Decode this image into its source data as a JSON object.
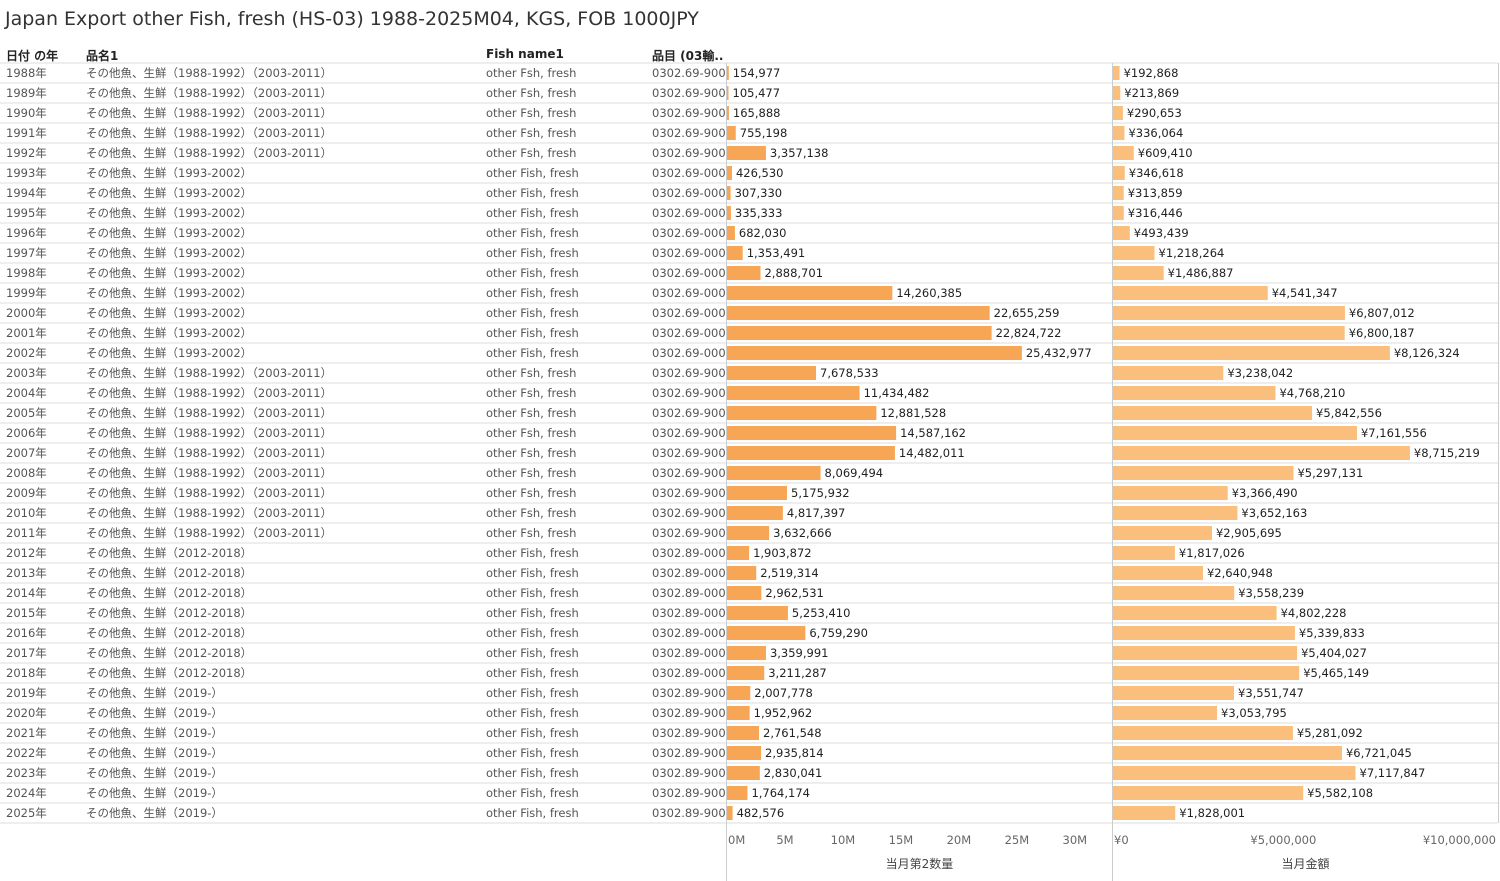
{
  "title": "Japan Export other Fish, fresh (HS-03) 1988-2025M04, KGS, FOB 1000JPY",
  "headers": {
    "year": "日付 の年",
    "name1": "品名1",
    "fish_name": "Fish name1",
    "item": "品目 (03輸.."
  },
  "colors": {
    "qty_bar": "#f6a654",
    "amt_bar": "#fbbf7d",
    "grid": "#dddddd",
    "divider": "#cccccc"
  },
  "chart_data": [
    {
      "type": "bar",
      "orientation": "horizontal",
      "title": "",
      "xlabel": "当月第2数量",
      "xlim": [
        0,
        32000000
      ],
      "xticks": [
        "0M",
        "5M",
        "10M",
        "15M",
        "20M",
        "25M",
        "30M"
      ],
      "categories": [
        "1988年",
        "1989年",
        "1990年",
        "1991年",
        "1992年",
        "1993年",
        "1994年",
        "1995年",
        "1996年",
        "1997年",
        "1998年",
        "1999年",
        "2000年",
        "2001年",
        "2002年",
        "2003年",
        "2004年",
        "2005年",
        "2006年",
        "2007年",
        "2008年",
        "2009年",
        "2010年",
        "2011年",
        "2012年",
        "2013年",
        "2014年",
        "2015年",
        "2016年",
        "2017年",
        "2018年",
        "2019年",
        "2020年",
        "2021年",
        "2022年",
        "2023年",
        "2024年",
        "2025年"
      ],
      "values": [
        154977,
        105477,
        165888,
        755198,
        3357138,
        426530,
        307330,
        335333,
        682030,
        1353491,
        2888701,
        14260385,
        22655259,
        22824722,
        25432977,
        7678533,
        11434482,
        12881528,
        14587162,
        14482011,
        8069494,
        5175932,
        4817397,
        3632666,
        1903872,
        2519314,
        2962531,
        5253410,
        6759290,
        3359991,
        3211287,
        2007778,
        1952962,
        2761548,
        2935814,
        2830041,
        1764174,
        482576
      ],
      "labels": [
        "154,977",
        "105,477",
        "165,888",
        "755,198",
        "3,357,138",
        "426,530",
        "307,330",
        "335,333",
        "682,030",
        "1,353,491",
        "2,888,701",
        "14,260,385",
        "22,655,259",
        "22,824,722",
        "25,432,977",
        "7,678,533",
        "11,434,482",
        "12,881,528",
        "14,587,162",
        "14,482,011",
        "8,069,494",
        "5,175,932",
        "4,817,397",
        "3,632,666",
        "1,903,872",
        "2,519,314",
        "2,962,531",
        "5,253,410",
        "6,759,290",
        "3,359,991",
        "3,211,287",
        "2,007,778",
        "1,952,962",
        "2,761,548",
        "2,935,814",
        "2,830,041",
        "1,764,174",
        "482,576"
      ]
    },
    {
      "type": "bar",
      "orientation": "horizontal",
      "title": "",
      "xlabel": "当月金額",
      "xlim": [
        0,
        11300000
      ],
      "xticks": [
        "¥0",
        "¥5,000,000",
        "¥10,000,000"
      ],
      "xtick_values": [
        0,
        5000000,
        10000000
      ],
      "categories": [
        "1988年",
        "1989年",
        "1990年",
        "1991年",
        "1992年",
        "1993年",
        "1994年",
        "1995年",
        "1996年",
        "1997年",
        "1998年",
        "1999年",
        "2000年",
        "2001年",
        "2002年",
        "2003年",
        "2004年",
        "2005年",
        "2006年",
        "2007年",
        "2008年",
        "2009年",
        "2010年",
        "2011年",
        "2012年",
        "2013年",
        "2014年",
        "2015年",
        "2016年",
        "2017年",
        "2018年",
        "2019年",
        "2020年",
        "2021年",
        "2022年",
        "2023年",
        "2024年",
        "2025年"
      ],
      "values": [
        192868,
        213869,
        290653,
        336064,
        609410,
        346618,
        313859,
        316446,
        493439,
        1218264,
        1486887,
        4541347,
        6807012,
        6800187,
        8126324,
        3238042,
        4768210,
        5842556,
        7161556,
        8715219,
        5297131,
        3366490,
        3652163,
        2905695,
        1817026,
        2640948,
        3558239,
        4802228,
        5339833,
        5404027,
        5465149,
        3551747,
        3053795,
        5281092,
        6721045,
        7117847,
        5582108,
        1828001
      ],
      "labels": [
        "¥192,868",
        "¥213,869",
        "¥290,653",
        "¥336,064",
        "¥609,410",
        "¥346,618",
        "¥313,859",
        "¥316,446",
        "¥493,439",
        "¥1,218,264",
        "¥1,486,887",
        "¥4,541,347",
        "¥6,807,012",
        "¥6,800,187",
        "¥8,126,324",
        "¥3,238,042",
        "¥4,768,210",
        "¥5,842,556",
        "¥7,161,556",
        "¥8,715,219",
        "¥5,297,131",
        "¥3,366,490",
        "¥3,652,163",
        "¥2,905,695",
        "¥1,817,026",
        "¥2,640,948",
        "¥3,558,239",
        "¥4,802,228",
        "¥5,339,833",
        "¥5,404,027",
        "¥5,465,149",
        "¥3,551,747",
        "¥3,053,795",
        "¥5,281,092",
        "¥6,721,045",
        "¥7,117,847",
        "¥5,582,108",
        "¥1,828,001"
      ]
    }
  ],
  "rows": [
    {
      "year": "1988年",
      "name1": "その他魚、生鮮（1988-1992）（2003-2011）",
      "fish": "other Fsh, fresh",
      "item": "0302.69-900"
    },
    {
      "year": "1989年",
      "name1": "その他魚、生鮮（1988-1992）（2003-2011）",
      "fish": "other Fsh, fresh",
      "item": "0302.69-900"
    },
    {
      "year": "1990年",
      "name1": "その他魚、生鮮（1988-1992）（2003-2011）",
      "fish": "other Fsh, fresh",
      "item": "0302.69-900"
    },
    {
      "year": "1991年",
      "name1": "その他魚、生鮮（1988-1992）（2003-2011）",
      "fish": "other Fsh, fresh",
      "item": "0302.69-900"
    },
    {
      "year": "1992年",
      "name1": "その他魚、生鮮（1988-1992）（2003-2011）",
      "fish": "other Fsh, fresh",
      "item": "0302.69-900"
    },
    {
      "year": "1993年",
      "name1": "その他魚、生鮮（1993-2002）",
      "fish": "other Fish, fresh",
      "item": "0302.69-000"
    },
    {
      "year": "1994年",
      "name1": "その他魚、生鮮（1993-2002）",
      "fish": "other Fish, fresh",
      "item": "0302.69-000"
    },
    {
      "year": "1995年",
      "name1": "その他魚、生鮮（1993-2002）",
      "fish": "other Fish, fresh",
      "item": "0302.69-000"
    },
    {
      "year": "1996年",
      "name1": "その他魚、生鮮（1993-2002）",
      "fish": "other Fish, fresh",
      "item": "0302.69-000"
    },
    {
      "year": "1997年",
      "name1": "その他魚、生鮮（1993-2002）",
      "fish": "other Fish, fresh",
      "item": "0302.69-000"
    },
    {
      "year": "1998年",
      "name1": "その他魚、生鮮（1993-2002）",
      "fish": "other Fish, fresh",
      "item": "0302.69-000"
    },
    {
      "year": "1999年",
      "name1": "その他魚、生鮮（1993-2002）",
      "fish": "other Fish, fresh",
      "item": "0302.69-000"
    },
    {
      "year": "2000年",
      "name1": "その他魚、生鮮（1993-2002）",
      "fish": "other Fish, fresh",
      "item": "0302.69-000"
    },
    {
      "year": "2001年",
      "name1": "その他魚、生鮮（1993-2002）",
      "fish": "other Fish, fresh",
      "item": "0302.69-000"
    },
    {
      "year": "2002年",
      "name1": "その他魚、生鮮（1993-2002）",
      "fish": "other Fish, fresh",
      "item": "0302.69-000"
    },
    {
      "year": "2003年",
      "name1": "その他魚、生鮮（1988-1992）（2003-2011）",
      "fish": "other Fsh, fresh",
      "item": "0302.69-900"
    },
    {
      "year": "2004年",
      "name1": "その他魚、生鮮（1988-1992）（2003-2011）",
      "fish": "other Fsh, fresh",
      "item": "0302.69-900"
    },
    {
      "year": "2005年",
      "name1": "その他魚、生鮮（1988-1992）（2003-2011）",
      "fish": "other Fsh, fresh",
      "item": "0302.69-900"
    },
    {
      "year": "2006年",
      "name1": "その他魚、生鮮（1988-1992）（2003-2011）",
      "fish": "other Fsh, fresh",
      "item": "0302.69-900"
    },
    {
      "year": "2007年",
      "name1": "その他魚、生鮮（1988-1992）（2003-2011）",
      "fish": "other Fsh, fresh",
      "item": "0302.69-900"
    },
    {
      "year": "2008年",
      "name1": "その他魚、生鮮（1988-1992）（2003-2011）",
      "fish": "other Fsh, fresh",
      "item": "0302.69-900"
    },
    {
      "year": "2009年",
      "name1": "その他魚、生鮮（1988-1992）（2003-2011）",
      "fish": "other Fsh, fresh",
      "item": "0302.69-900"
    },
    {
      "year": "2010年",
      "name1": "その他魚、生鮮（1988-1992）（2003-2011）",
      "fish": "other Fsh, fresh",
      "item": "0302.69-900"
    },
    {
      "year": "2011年",
      "name1": "その他魚、生鮮（1988-1992）（2003-2011）",
      "fish": "other Fsh, fresh",
      "item": "0302.69-900"
    },
    {
      "year": "2012年",
      "name1": "その他魚、生鮮（2012-2018）",
      "fish": "other Fish, fresh",
      "item": "0302.89-000"
    },
    {
      "year": "2013年",
      "name1": "その他魚、生鮮（2012-2018）",
      "fish": "other Fish, fresh",
      "item": "0302.89-000"
    },
    {
      "year": "2014年",
      "name1": "その他魚、生鮮（2012-2018）",
      "fish": "other Fish, fresh",
      "item": "0302.89-000"
    },
    {
      "year": "2015年",
      "name1": "その他魚、生鮮（2012-2018）",
      "fish": "other Fish, fresh",
      "item": "0302.89-000"
    },
    {
      "year": "2016年",
      "name1": "その他魚、生鮮（2012-2018）",
      "fish": "other Fish, fresh",
      "item": "0302.89-000"
    },
    {
      "year": "2017年",
      "name1": "その他魚、生鮮（2012-2018）",
      "fish": "other Fish, fresh",
      "item": "0302.89-000"
    },
    {
      "year": "2018年",
      "name1": "その他魚、生鮮（2012-2018）",
      "fish": "other Fish, fresh",
      "item": "0302.89-000"
    },
    {
      "year": "2019年",
      "name1": "その他魚、生鮮（2019-）",
      "fish": "other Fish, fresh",
      "item": "0302.89-900"
    },
    {
      "year": "2020年",
      "name1": "その他魚、生鮮（2019-）",
      "fish": "other Fish, fresh",
      "item": "0302.89-900"
    },
    {
      "year": "2021年",
      "name1": "その他魚、生鮮（2019-）",
      "fish": "other Fish, fresh",
      "item": "0302.89-900"
    },
    {
      "year": "2022年",
      "name1": "その他魚、生鮮（2019-）",
      "fish": "other Fish, fresh",
      "item": "0302.89-900"
    },
    {
      "year": "2023年",
      "name1": "その他魚、生鮮（2019-）",
      "fish": "other Fish, fresh",
      "item": "0302.89-900"
    },
    {
      "year": "2024年",
      "name1": "その他魚、生鮮（2019-）",
      "fish": "other Fish, fresh",
      "item": "0302.89-900"
    },
    {
      "year": "2025年",
      "name1": "その他魚、生鮮（2019-）",
      "fish": "other Fish, fresh",
      "item": "0302.89-900"
    }
  ]
}
